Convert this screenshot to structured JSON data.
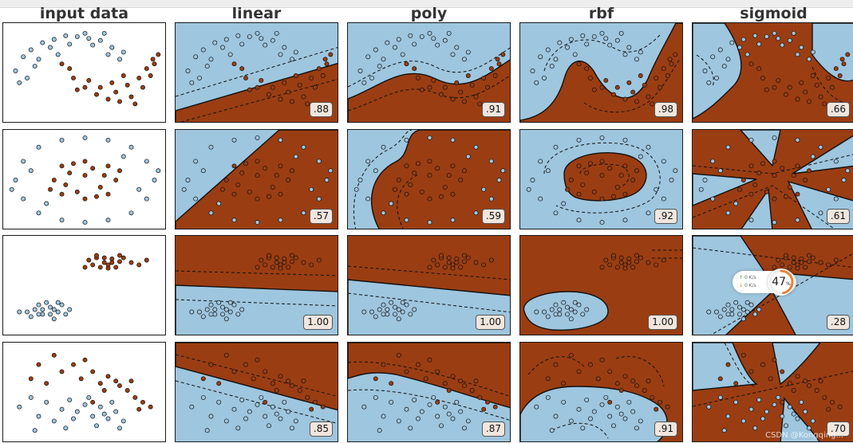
{
  "columns": [
    {
      "key": "input",
      "title": "input data"
    },
    {
      "key": "linear",
      "title": "linear"
    },
    {
      "key": "poly",
      "title": "poly"
    },
    {
      "key": "rbf",
      "title": "rbf"
    },
    {
      "key": "sigmoid",
      "title": "sigmoid"
    }
  ],
  "colors": {
    "class_a": "#9ec6de",
    "class_b": "#9b3d12",
    "edge": "#111111"
  },
  "chart_data": [
    {
      "type": "scatter",
      "dataset": "moons",
      "ylim": [
        -1,
        1
      ],
      "scores": {
        "linear": ".88",
        "poly": ".91",
        "rbf": ".98",
        "sigmoid": ".66"
      },
      "class_a": [
        [
          -0.9,
          0.05
        ],
        [
          -0.8,
          0.35
        ],
        [
          -0.7,
          0.5
        ],
        [
          -0.55,
          0.65
        ],
        [
          -0.4,
          0.72
        ],
        [
          -0.25,
          0.8
        ],
        [
          -0.1,
          0.78
        ],
        [
          0.05,
          0.74
        ],
        [
          0.2,
          0.7
        ],
        [
          0.35,
          0.55
        ],
        [
          0.5,
          0.45
        ],
        [
          -0.75,
          -0.1
        ],
        [
          -0.6,
          0.3
        ],
        [
          -0.45,
          0.55
        ],
        [
          -0.2,
          0.62
        ],
        [
          0.1,
          0.6
        ],
        [
          0.3,
          0.4
        ],
        [
          -0.85,
          -0.2
        ],
        [
          0.45,
          0.3
        ],
        [
          -0.35,
          0.4
        ],
        [
          0.0,
          0.85
        ],
        [
          -0.65,
          0.15
        ],
        [
          0.25,
          0.85
        ]
      ],
      "class_b": [
        [
          -0.3,
          0.2
        ],
        [
          -0.15,
          -0.1
        ],
        [
          0.0,
          -0.3
        ],
        [
          0.15,
          -0.45
        ],
        [
          0.3,
          -0.55
        ],
        [
          0.45,
          -0.6
        ],
        [
          0.6,
          -0.5
        ],
        [
          0.75,
          -0.3
        ],
        [
          0.85,
          -0.05
        ],
        [
          0.9,
          0.2
        ],
        [
          0.95,
          0.4
        ],
        [
          -0.2,
          0.1
        ],
        [
          0.05,
          -0.15
        ],
        [
          0.2,
          -0.3
        ],
        [
          0.4,
          -0.4
        ],
        [
          0.55,
          -0.25
        ],
        [
          0.7,
          -0.1
        ],
        [
          0.8,
          0.1
        ],
        [
          -0.1,
          -0.35
        ],
        [
          0.65,
          -0.65
        ],
        [
          0.35,
          -0.2
        ],
        [
          0.5,
          -0.05
        ],
        [
          0.88,
          0.3
        ]
      ]
    },
    {
      "type": "scatter",
      "dataset": "circles",
      "ylim": [
        -1,
        1
      ],
      "scores": {
        "linear": ".57",
        "poly": ".59",
        "rbf": ".92",
        "sigmoid": ".61"
      },
      "class_a": [
        [
          -0.9,
          0.0
        ],
        [
          -0.8,
          0.4
        ],
        [
          -0.6,
          0.7
        ],
        [
          -0.3,
          0.85
        ],
        [
          0.0,
          0.9
        ],
        [
          0.3,
          0.85
        ],
        [
          0.6,
          0.7
        ],
        [
          0.8,
          0.4
        ],
        [
          0.9,
          0.0
        ],
        [
          0.8,
          -0.4
        ],
        [
          0.6,
          -0.7
        ],
        [
          0.3,
          -0.85
        ],
        [
          0.0,
          -0.9
        ],
        [
          -0.3,
          -0.85
        ],
        [
          -0.6,
          -0.7
        ],
        [
          -0.8,
          -0.4
        ],
        [
          -0.7,
          0.2
        ],
        [
          0.7,
          -0.2
        ],
        [
          -0.5,
          -0.5
        ],
        [
          0.5,
          0.5
        ],
        [
          0.95,
          0.2
        ],
        [
          -0.95,
          -0.2
        ]
      ],
      "class_b": [
        [
          -0.4,
          0.0
        ],
        [
          -0.3,
          0.3
        ],
        [
          0.0,
          0.4
        ],
        [
          0.3,
          0.3
        ],
        [
          0.4,
          0.0
        ],
        [
          0.3,
          -0.3
        ],
        [
          0.0,
          -0.4
        ],
        [
          -0.3,
          -0.3
        ],
        [
          -0.2,
          0.15
        ],
        [
          0.2,
          -0.15
        ],
        [
          0.1,
          0.25
        ],
        [
          -0.1,
          -0.25
        ],
        [
          0.25,
          0.1
        ],
        [
          -0.25,
          -0.1
        ],
        [
          0.45,
          0.2
        ],
        [
          -0.45,
          -0.2
        ],
        [
          0.0,
          0.1
        ],
        [
          0.15,
          -0.35
        ],
        [
          -0.15,
          0.35
        ]
      ]
    },
    {
      "type": "scatter",
      "dataset": "blobs",
      "ylim": [
        -1,
        1
      ],
      "scores": {
        "linear": "1.00",
        "poly": "1.00",
        "rbf": "1.00",
        "sigmoid": ".28"
      },
      "class_a": [
        [
          -0.75,
          -0.55
        ],
        [
          -0.65,
          -0.5
        ],
        [
          -0.55,
          -0.6
        ],
        [
          -0.45,
          -0.45
        ],
        [
          -0.35,
          -0.55
        ],
        [
          -0.25,
          -0.6
        ],
        [
          -0.6,
          -0.4
        ],
        [
          -0.4,
          -0.7
        ],
        [
          -0.5,
          -0.35
        ],
        [
          -0.3,
          -0.4
        ],
        [
          -0.7,
          -0.65
        ],
        [
          -0.2,
          -0.5
        ],
        [
          -0.45,
          -0.6
        ],
        [
          -0.55,
          -0.5
        ],
        [
          -0.35,
          -0.35
        ],
        [
          -0.85,
          -0.55
        ],
        [
          -0.4,
          -0.5
        ],
        [
          -0.6,
          -0.6
        ]
      ],
      "class_b": [
        [
          0.05,
          0.55
        ],
        [
          0.15,
          0.6
        ],
        [
          0.25,
          0.5
        ],
        [
          0.35,
          0.58
        ],
        [
          0.45,
          0.52
        ],
        [
          0.1,
          0.45
        ],
        [
          0.2,
          0.4
        ],
        [
          0.3,
          0.45
        ],
        [
          0.4,
          0.4
        ],
        [
          0.5,
          0.6
        ],
        [
          0.15,
          0.65
        ],
        [
          0.25,
          0.6
        ],
        [
          0.35,
          0.5
        ],
        [
          0.6,
          0.5
        ],
        [
          0.0,
          0.4
        ],
        [
          0.45,
          0.65
        ],
        [
          0.3,
          0.38
        ],
        [
          0.8,
          0.55
        ],
        [
          0.7,
          0.45
        ]
      ]
    },
    {
      "type": "scatter",
      "dataset": "linear",
      "ylim": [
        -1,
        1
      ],
      "scores": {
        "linear": ".85",
        "poly": ".87",
        "rbf": ".91",
        "sigmoid": ".70"
      },
      "class_a": [
        [
          -0.85,
          -0.3
        ],
        [
          -0.7,
          -0.1
        ],
        [
          -0.6,
          -0.5
        ],
        [
          -0.5,
          -0.2
        ],
        [
          -0.4,
          -0.6
        ],
        [
          -0.3,
          -0.35
        ],
        [
          -0.2,
          -0.15
        ],
        [
          -0.1,
          -0.4
        ],
        [
          0.0,
          -0.25
        ],
        [
          0.1,
          -0.5
        ],
        [
          0.2,
          -0.3
        ],
        [
          0.3,
          -0.55
        ],
        [
          0.4,
          -0.4
        ],
        [
          0.15,
          -0.7
        ],
        [
          -0.25,
          -0.75
        ],
        [
          0.5,
          -0.6
        ],
        [
          0.05,
          -0.1
        ],
        [
          0.25,
          -0.45
        ],
        [
          -0.65,
          -0.8
        ],
        [
          0.35,
          -0.2
        ],
        [
          0.45,
          -0.75
        ],
        [
          -0.15,
          -0.55
        ]
      ],
      "class_b": [
        [
          -0.7,
          0.3
        ],
        [
          -0.6,
          0.6
        ],
        [
          -0.4,
          0.8
        ],
        [
          -0.3,
          0.45
        ],
        [
          -0.15,
          0.6
        ],
        [
          -0.05,
          0.3
        ],
        [
          0.1,
          0.45
        ],
        [
          0.2,
          0.2
        ],
        [
          0.3,
          0.35
        ],
        [
          0.45,
          0.15
        ],
        [
          0.55,
          0.05
        ],
        [
          0.65,
          -0.1
        ],
        [
          0.75,
          -0.2
        ],
        [
          0.85,
          -0.3
        ],
        [
          0.4,
          0.25
        ],
        [
          -0.5,
          0.2
        ],
        [
          0.0,
          0.7
        ],
        [
          0.6,
          0.25
        ],
        [
          0.7,
          -0.35
        ],
        [
          0.25,
          0.05
        ],
        [
          0.1,
          -0.2
        ]
      ]
    }
  ],
  "overlay": {
    "up_label": "0 K/s",
    "down_label": "0 K/s",
    "percent": "47",
    "percent_unit": "%"
  },
  "watermark": "CSDN @Kongqing..."
}
